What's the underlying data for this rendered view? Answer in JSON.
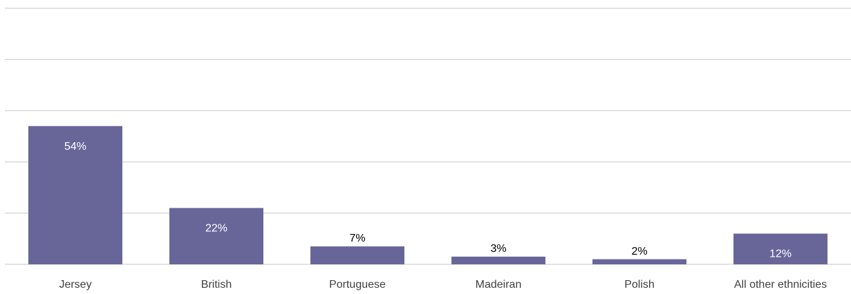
{
  "chart_data": {
    "type": "bar",
    "categories": [
      "Jersey",
      "British",
      "Portuguese",
      "Madeiran",
      "Polish",
      "All other ethnicities"
    ],
    "values": [
      54,
      22,
      7,
      3,
      2,
      12
    ],
    "value_labels": [
      "54%",
      "22%",
      "7%",
      "3%",
      "2%",
      "12%"
    ],
    "color": "#686699",
    "ylim": [
      0,
      100
    ],
    "yticks": [
      0,
      20,
      40,
      60,
      80,
      100
    ],
    "grid": true
  }
}
